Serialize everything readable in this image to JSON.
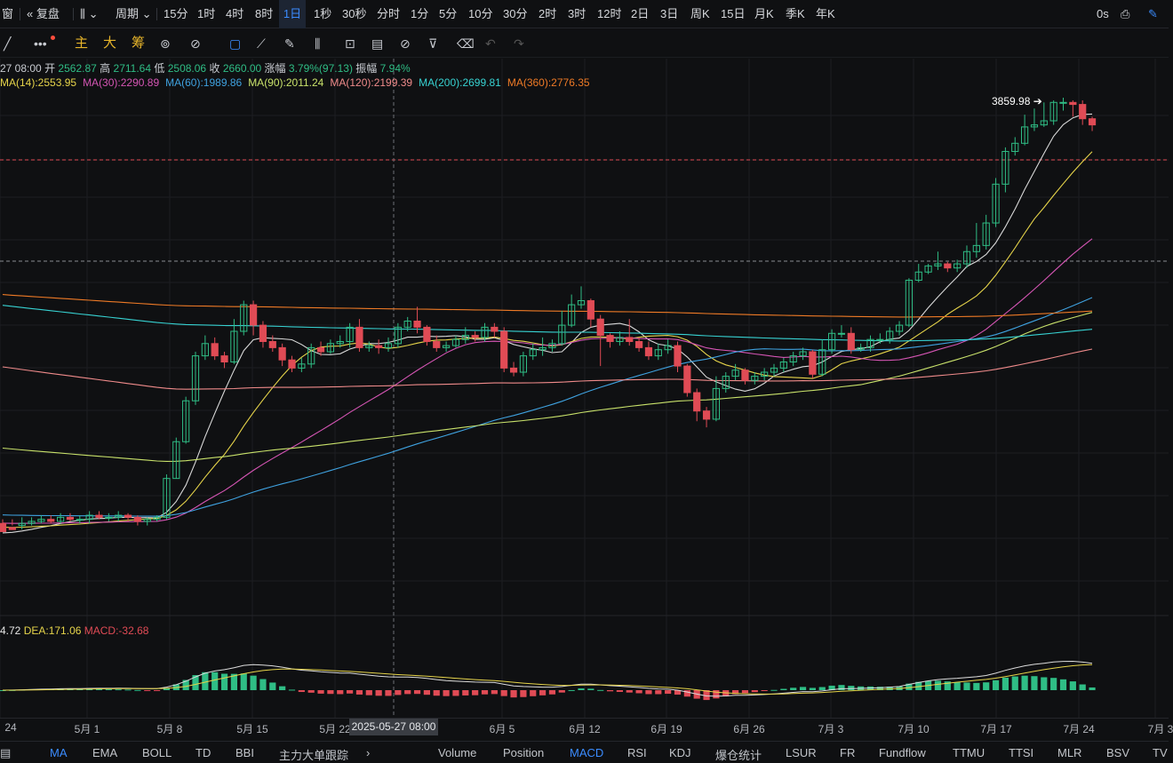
{
  "toolbar": {
    "window_label": "窗",
    "replay_label": "复盘",
    "period_label": "周期",
    "intervals": [
      "15分",
      "1时",
      "4时",
      "8时",
      "1日",
      "1秒",
      "30秒",
      "分时",
      "1分",
      "5分",
      "10分",
      "30分",
      "2时",
      "3时",
      "12时",
      "2日",
      "3日",
      "周K",
      "15日",
      "月K",
      "季K",
      "年K"
    ],
    "active_interval": "1日",
    "right_value": "0s"
  },
  "drawbar": {
    "indicator_labels": [
      "主",
      "大",
      "筹"
    ]
  },
  "ohlc": {
    "date": "27 08:00",
    "open_label": "开",
    "open": "2562.87",
    "high_label": "高",
    "high": "2711.64",
    "low_label": "低",
    "low": "2508.06",
    "close_label": "收",
    "close": "2660.00",
    "change_label": "涨幅",
    "change": "3.79%(97.13)",
    "amplitude_label": "振幅",
    "amplitude": "7.94%"
  },
  "ma_values": [
    {
      "text": "MA(14):2553.95",
      "color": "#e6d44a"
    },
    {
      "text": "MA(30):2290.89",
      "color": "#d555b4"
    },
    {
      "text": "MA(60):1989.86",
      "color": "#3fa2e0"
    },
    {
      "text": "MA(90):2011.24",
      "color": "#c9e26b"
    },
    {
      "text": "MA(120):2199.39",
      "color": "#f08b8b"
    },
    {
      "text": "MA(200):2699.81",
      "color": "#37d2d2"
    },
    {
      "text": "MA(360):2776.35",
      "color": "#ee7a26"
    }
  ],
  "macd": {
    "dif_partial": "4.72",
    "dea": "DEA:171.06",
    "macd": "MACD:-32.68"
  },
  "max_price_label": "3859.98",
  "crosshair_date": "2025-05-27 08:00",
  "x_axis_labels": [
    "24",
    "5月 1",
    "5月 8",
    "5月 15",
    "5月 22",
    "6月 5",
    "6月 12",
    "6月 19",
    "6月 26",
    "7月 3",
    "7月 10",
    "7月 17",
    "7月 24",
    "7月 3"
  ],
  "bottom_indicators": [
    "MA",
    "EMA",
    "BOLL",
    "TD",
    "BBI",
    "主力大单跟踪"
  ],
  "bottom_subindicators": [
    "Volume",
    "Position",
    "MACD",
    "RSI",
    "KDJ",
    "爆仓统计",
    "LSUR",
    "FR",
    "Fundflow",
    "TTMU",
    "TTSI",
    "MLR",
    "BSV",
    "TV"
  ],
  "active_main_indicator": "MA",
  "active_sub_indicator": "MACD",
  "colors": {
    "up": "#2fbd85",
    "down": "#e04b55",
    "accent": "#3b8cff",
    "ma7": "#d8d8d8"
  },
  "chart_data": {
    "type": "candlestick",
    "up_color": "#2fbd85",
    "down_color": "#e04b55",
    "candles": [
      [
        1777,
        1737,
        1797,
        1757
      ],
      [
        1757,
        1747,
        1797,
        1767
      ],
      [
        1767,
        1777,
        1807,
        1747
      ],
      [
        1777,
        1787,
        1807,
        1767
      ],
      [
        1787,
        1797,
        1817,
        1777
      ],
      [
        1797,
        1787,
        1817,
        1777
      ],
      [
        1787,
        1807,
        1827,
        1777
      ],
      [
        1807,
        1797,
        1827,
        1787
      ],
      [
        1797,
        1797,
        1817,
        1777
      ],
      [
        1797,
        1817,
        1837,
        1777
      ],
      [
        1817,
        1807,
        1837,
        1797
      ],
      [
        1807,
        1807,
        1827,
        1787
      ],
      [
        1807,
        1817,
        1837,
        1787
      ],
      [
        1817,
        1807,
        1827,
        1787
      ],
      [
        1807,
        1787,
        1817,
        1767
      ],
      [
        1787,
        1797,
        1807,
        1767
      ],
      [
        1797,
        1807,
        1817,
        1787
      ],
      [
        1807,
        1997,
        2017,
        1797
      ],
      [
        1997,
        2177,
        2197,
        1997
      ],
      [
        2177,
        2377,
        2397,
        2167
      ],
      [
        2377,
        2597,
        2617,
        2357
      ],
      [
        2597,
        2657,
        2697,
        2577
      ],
      [
        2657,
        2597,
        2687,
        2577
      ],
      [
        2597,
        2567,
        2617,
        2537
      ],
      [
        2567,
        2717,
        2777,
        2557
      ],
      [
        2717,
        2847,
        2867,
        2697
      ],
      [
        2847,
        2747,
        2867,
        2697
      ],
      [
        2747,
        2667,
        2767,
        2637
      ],
      [
        2667,
        2637,
        2697,
        2617
      ],
      [
        2637,
        2577,
        2657,
        2547
      ],
      [
        2577,
        2537,
        2597,
        2517
      ],
      [
        2537,
        2557,
        2587,
        2517
      ],
      [
        2557,
        2637,
        2657,
        2537
      ],
      [
        2637,
        2617,
        2667,
        2597
      ],
      [
        2617,
        2657,
        2677,
        2607
      ],
      [
        2657,
        2667,
        2697,
        2637
      ],
      [
        2667,
        2737,
        2757,
        2637
      ],
      [
        2737,
        2637,
        2777,
        2617
      ],
      [
        2637,
        2647,
        2667,
        2617
      ],
      [
        2647,
        2637,
        2677,
        2607
      ],
      [
        2637,
        2657,
        2687,
        2617
      ],
      [
        2657,
        2737,
        2757,
        2637
      ],
      [
        2737,
        2767,
        2787,
        2717
      ],
      [
        2767,
        2737,
        2837,
        2707
      ],
      [
        2737,
        2667,
        2747,
        2647
      ],
      [
        2667,
        2637,
        2697,
        2617
      ],
      [
        2637,
        2647,
        2667,
        2617
      ],
      [
        2647,
        2677,
        2697,
        2637
      ],
      [
        2677,
        2697,
        2737,
        2657
      ],
      [
        2697,
        2687,
        2717,
        2667
      ],
      [
        2687,
        2737,
        2757,
        2667
      ],
      [
        2737,
        2717,
        2757,
        2687
      ],
      [
        2717,
        2537,
        2737,
        2517
      ],
      [
        2537,
        2517,
        2567,
        2497
      ],
      [
        2517,
        2597,
        2617,
        2497
      ],
      [
        2597,
        2627,
        2657,
        2577
      ],
      [
        2627,
        2637,
        2687,
        2597
      ],
      [
        2637,
        2657,
        2677,
        2617
      ],
      [
        2657,
        2747,
        2817,
        2647
      ],
      [
        2747,
        2847,
        2897,
        2737
      ],
      [
        2847,
        2867,
        2937,
        2827
      ],
      [
        2867,
        2777,
        2877,
        2737
      ],
      [
        2777,
        2697,
        2797,
        2547
      ],
      [
        2697,
        2667,
        2707,
        2637
      ],
      [
        2667,
        2687,
        2717,
        2647
      ],
      [
        2687,
        2667,
        2777,
        2647
      ],
      [
        2667,
        2637,
        2687,
        2617
      ],
      [
        2637,
        2597,
        2667,
        2577
      ],
      [
        2597,
        2627,
        2657,
        2577
      ],
      [
        2627,
        2647,
        2677,
        2607
      ],
      [
        2647,
        2547,
        2667,
        2517
      ],
      [
        2547,
        2417,
        2557,
        2397
      ],
      [
        2417,
        2327,
        2437,
        2277
      ],
      [
        2327,
        2287,
        2347,
        2247
      ],
      [
        2287,
        2437,
        2497,
        2277
      ],
      [
        2437,
        2497,
        2517,
        2417
      ],
      [
        2497,
        2527,
        2557,
        2477
      ],
      [
        2527,
        2477,
        2537,
        2457
      ],
      [
        2477,
        2497,
        2517,
        2457
      ],
      [
        2497,
        2517,
        2537,
        2477
      ],
      [
        2517,
        2537,
        2557,
        2497
      ],
      [
        2537,
        2567,
        2587,
        2517
      ],
      [
        2567,
        2597,
        2617,
        2547
      ],
      [
        2597,
        2617,
        2637,
        2577
      ],
      [
        2617,
        2507,
        2627,
        2487
      ],
      [
        2507,
        2627,
        2677,
        2497
      ],
      [
        2627,
        2707,
        2727,
        2607
      ],
      [
        2707,
        2707,
        2747,
        2687
      ],
      [
        2707,
        2627,
        2737,
        2607
      ],
      [
        2627,
        2637,
        2657,
        2617
      ],
      [
        2637,
        2677,
        2697,
        2617
      ],
      [
        2677,
        2677,
        2707,
        2657
      ],
      [
        2677,
        2717,
        2737,
        2657
      ],
      [
        2717,
        2747,
        2767,
        2697
      ],
      [
        2747,
        2967,
        2977,
        2737
      ],
      [
        2967,
        3007,
        3047,
        2957
      ],
      [
        3007,
        3037,
        3047,
        2997
      ],
      [
        3037,
        3047,
        3107,
        3017
      ],
      [
        3047,
        3027,
        3057,
        3007
      ],
      [
        3027,
        3047,
        3067,
        3007
      ],
      [
        3047,
        3107,
        3137,
        3027
      ],
      [
        3107,
        3137,
        3247,
        3077
      ],
      [
        3137,
        3247,
        3287,
        3117
      ],
      [
        3247,
        3437,
        3467,
        3227
      ],
      [
        3437,
        3597,
        3617,
        3397
      ],
      [
        3597,
        3637,
        3667,
        3577
      ],
      [
        3637,
        3717,
        3777,
        3627
      ],
      [
        3717,
        3727,
        3807,
        3697
      ],
      [
        3727,
        3747,
        3837,
        3717
      ],
      [
        3747,
        3837,
        3847,
        3727
      ],
      [
        3837,
        3837,
        3860,
        3797
      ],
      [
        3837,
        3827,
        3847,
        3767
      ],
      [
        3827,
        3757,
        3847,
        3727
      ],
      [
        3757,
        3727,
        3767,
        3697
      ]
    ],
    "y_range": [
      1400,
      3900
    ],
    "x_labels": [
      "24",
      "5月 1",
      "5月 8",
      "5月 15",
      "5月 22",
      "6月 5",
      "6月 12",
      "6月 19",
      "6月 26",
      "7月 3",
      "7月 10",
      "7月 17",
      "7月 24",
      "7月 3"
    ],
    "ma_series": [
      {
        "name": "MA(14)",
        "color": "#e6d44a"
      },
      {
        "name": "MA(30)",
        "color": "#d555b4"
      },
      {
        "name": "MA(60)",
        "color": "#3fa2e0"
      },
      {
        "name": "MA(90)",
        "color": "#c9e26b"
      },
      {
        "name": "MA(120)",
        "color": "#f08b8b"
      },
      {
        "name": "MA(200)",
        "color": "#37d2d2"
      },
      {
        "name": "MA(360)",
        "color": "#ee7a26"
      }
    ],
    "max_price": 3859.98
  }
}
